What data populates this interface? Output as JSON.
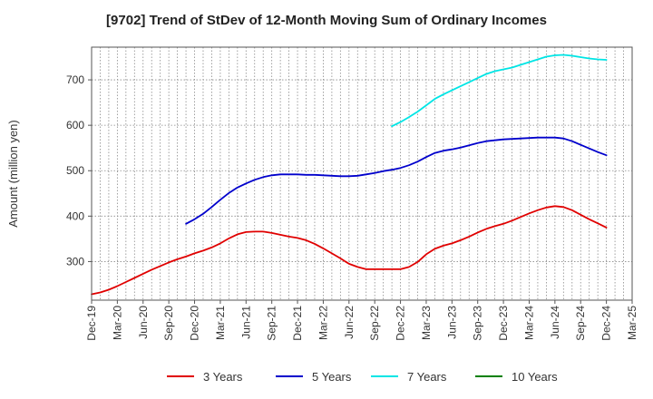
{
  "chart_data": {
    "type": "line",
    "title": "[9702]  Trend of StDev of 12-Month Moving Sum of Ordinary Incomes",
    "ylabel": "Amount (million yen)",
    "xlabel": "",
    "ylim": [
      215,
      772
    ],
    "yticks": [
      300,
      400,
      500,
      600,
      700
    ],
    "x_ticks": [
      "Dec-19",
      "Mar-20",
      "Jun-20",
      "Sep-20",
      "Dec-20",
      "Mar-21",
      "Jun-21",
      "Sep-21",
      "Dec-21",
      "Mar-22",
      "Jun-22",
      "Sep-22",
      "Dec-22",
      "Mar-23",
      "Jun-23",
      "Sep-23",
      "Dec-23",
      "Mar-24",
      "Jun-24",
      "Sep-24",
      "Dec-24",
      "Mar-25"
    ],
    "grid": true,
    "legend_position": "bottom",
    "series": [
      {
        "name": "3 Years",
        "color": "#e00000",
        "points": [
          [
            "Dec-19",
            228
          ],
          [
            "Jan-20",
            232
          ],
          [
            "Feb-20",
            238
          ],
          [
            "Mar-20",
            246
          ],
          [
            "Apr-20",
            255
          ],
          [
            "May-20",
            264
          ],
          [
            "Jun-20",
            273
          ],
          [
            "Jul-20",
            282
          ],
          [
            "Aug-20",
            290
          ],
          [
            "Sep-20",
            298
          ],
          [
            "Oct-20",
            305
          ],
          [
            "Nov-20",
            311
          ],
          [
            "Dec-20",
            318
          ],
          [
            "Jan-21",
            324
          ],
          [
            "Feb-21",
            331
          ],
          [
            "Mar-21",
            340
          ],
          [
            "Apr-21",
            351
          ],
          [
            "May-21",
            360
          ],
          [
            "Jun-21",
            365
          ],
          [
            "Jul-21",
            366
          ],
          [
            "Aug-21",
            366
          ],
          [
            "Sep-21",
            363
          ],
          [
            "Oct-21",
            359
          ],
          [
            "Nov-21",
            355
          ],
          [
            "Dec-21",
            352
          ],
          [
            "Jan-22",
            347
          ],
          [
            "Feb-22",
            339
          ],
          [
            "Mar-22",
            329
          ],
          [
            "Apr-22",
            318
          ],
          [
            "May-22",
            307
          ],
          [
            "Jun-22",
            295
          ],
          [
            "Jul-22",
            288
          ],
          [
            "Aug-22",
            283
          ],
          [
            "Sep-22",
            283
          ],
          [
            "Oct-22",
            283
          ],
          [
            "Nov-22",
            283
          ],
          [
            "Dec-22",
            283
          ],
          [
            "Jan-23",
            288
          ],
          [
            "Feb-23",
            299
          ],
          [
            "Mar-23",
            316
          ],
          [
            "Apr-23",
            328
          ],
          [
            "May-23",
            335
          ],
          [
            "Jun-23",
            340
          ],
          [
            "Jul-23",
            347
          ],
          [
            "Aug-23",
            355
          ],
          [
            "Sep-23",
            364
          ],
          [
            "Oct-23",
            372
          ],
          [
            "Nov-23",
            378
          ],
          [
            "Dec-23",
            383
          ],
          [
            "Jan-24",
            390
          ],
          [
            "Feb-24",
            398
          ],
          [
            "Mar-24",
            406
          ],
          [
            "Apr-24",
            413
          ],
          [
            "May-24",
            419
          ],
          [
            "Jun-24",
            422
          ],
          [
            "Jul-24",
            420
          ],
          [
            "Aug-24",
            413
          ],
          [
            "Sep-24",
            403
          ],
          [
            "Oct-24",
            393
          ],
          [
            "Nov-24",
            384
          ],
          [
            "Dec-24",
            375
          ]
        ]
      },
      {
        "name": "5 Years",
        "color": "#0000cc",
        "points": [
          [
            "Nov-20",
            383
          ],
          [
            "Dec-20",
            393
          ],
          [
            "Jan-21",
            405
          ],
          [
            "Feb-21",
            420
          ],
          [
            "Mar-21",
            436
          ],
          [
            "Apr-21",
            451
          ],
          [
            "May-21",
            463
          ],
          [
            "Jun-21",
            472
          ],
          [
            "Jul-21",
            480
          ],
          [
            "Aug-21",
            486
          ],
          [
            "Sep-21",
            490
          ],
          [
            "Oct-21",
            492
          ],
          [
            "Nov-21",
            492
          ],
          [
            "Dec-21",
            492
          ],
          [
            "Jan-22",
            491
          ],
          [
            "Feb-22",
            491
          ],
          [
            "Mar-22",
            490
          ],
          [
            "Apr-22",
            489
          ],
          [
            "May-22",
            488
          ],
          [
            "Jun-22",
            488
          ],
          [
            "Jul-22",
            489
          ],
          [
            "Aug-22",
            492
          ],
          [
            "Sep-22",
            495
          ],
          [
            "Oct-22",
            499
          ],
          [
            "Nov-22",
            502
          ],
          [
            "Dec-22",
            506
          ],
          [
            "Jan-23",
            512
          ],
          [
            "Feb-23",
            520
          ],
          [
            "Mar-23",
            530
          ],
          [
            "Apr-23",
            539
          ],
          [
            "May-23",
            544
          ],
          [
            "Jun-23",
            547
          ],
          [
            "Jul-23",
            551
          ],
          [
            "Aug-23",
            556
          ],
          [
            "Sep-23",
            561
          ],
          [
            "Oct-23",
            565
          ],
          [
            "Nov-23",
            567
          ],
          [
            "Dec-23",
            569
          ],
          [
            "Jan-24",
            570
          ],
          [
            "Feb-24",
            571
          ],
          [
            "Mar-24",
            572
          ],
          [
            "Apr-24",
            573
          ],
          [
            "May-24",
            573
          ],
          [
            "Jun-24",
            573
          ],
          [
            "Jul-24",
            571
          ],
          [
            "Aug-24",
            565
          ],
          [
            "Sep-24",
            557
          ],
          [
            "Oct-24",
            549
          ],
          [
            "Nov-24",
            541
          ],
          [
            "Dec-24",
            534
          ]
        ]
      },
      {
        "name": "7 Years",
        "color": "#00e5e5",
        "points": [
          [
            "Nov-22",
            598
          ],
          [
            "Dec-22",
            607
          ],
          [
            "Jan-23",
            618
          ],
          [
            "Feb-23",
            630
          ],
          [
            "Mar-23",
            644
          ],
          [
            "Apr-23",
            658
          ],
          [
            "May-23",
            668
          ],
          [
            "Jun-23",
            677
          ],
          [
            "Jul-23",
            686
          ],
          [
            "Aug-23",
            695
          ],
          [
            "Sep-23",
            704
          ],
          [
            "Oct-23",
            713
          ],
          [
            "Nov-23",
            719
          ],
          [
            "Dec-23",
            723
          ],
          [
            "Jan-24",
            727
          ],
          [
            "Feb-24",
            733
          ],
          [
            "Mar-24",
            739
          ],
          [
            "Apr-24",
            745
          ],
          [
            "May-24",
            751
          ],
          [
            "Jun-24",
            754
          ],
          [
            "Jul-24",
            755
          ],
          [
            "Aug-24",
            753
          ],
          [
            "Sep-24",
            750
          ],
          [
            "Oct-24",
            747
          ],
          [
            "Nov-24",
            745
          ],
          [
            "Dec-24",
            744
          ]
        ]
      },
      {
        "name": "10 Years",
        "color": "#008000",
        "points": []
      }
    ]
  }
}
